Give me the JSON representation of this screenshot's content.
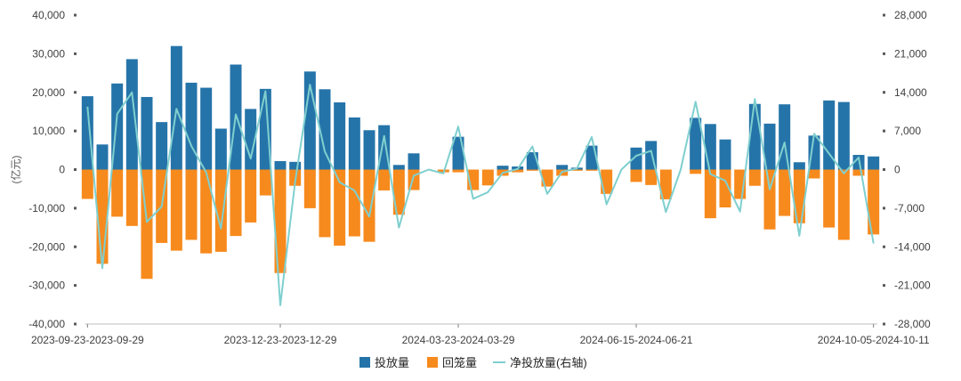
{
  "colors": {
    "inject": "#2574A9",
    "withdraw": "#F78A1D",
    "net": "#7FCFCF",
    "axis": "#7F7F7F",
    "text": "#404040"
  },
  "chart_data": {
    "type": "bar",
    "ylabel": "(亿元)",
    "ylim": [
      -40000,
      40000
    ],
    "y2lim": [
      -28000,
      28000
    ],
    "yticks": [
      "40,000",
      "30,000",
      "20,000",
      "10,000",
      "0",
      "-10,000",
      "-20,000",
      "-30,000",
      "-40,000"
    ],
    "y2ticks": [
      "28,000",
      "21,000",
      "14,000",
      "7,000",
      "0",
      "-7,000",
      "-14,000",
      "-21,000",
      "-28,000"
    ],
    "xticks": [
      {
        "index": 0,
        "label": "2023-09-23-2023-09-29"
      },
      {
        "index": 13,
        "label": "2023-12-23-2023-12-29"
      },
      {
        "index": 25,
        "label": "2024-03-23-2024-03-29"
      },
      {
        "index": 37,
        "label": "2024-06-15-2024-06-21"
      },
      {
        "index": 53,
        "label": "2024-10-05-2024-10-11"
      }
    ],
    "grid": false,
    "legend_position": "bottom",
    "legend": [
      "投放量",
      "回笼量",
      "净投放量(右轴)"
    ],
    "series": [
      {
        "name": "投放量",
        "values": [
          19000,
          6500,
          22300,
          28600,
          18800,
          12300,
          32000,
          22500,
          21200,
          10600,
          27200,
          15700,
          20900,
          2200,
          2000,
          25400,
          20800,
          17400,
          13500,
          10200,
          11500,
          1200,
          4200,
          0,
          0,
          8500,
          0,
          0,
          1000,
          800,
          4500,
          0,
          1200,
          500,
          6200,
          0,
          0,
          5700,
          7400,
          0,
          0,
          13400,
          11800,
          7800,
          0,
          17000,
          11900,
          16900,
          1900,
          8800,
          17900,
          17500,
          3800,
          3400
        ]
      },
      {
        "name": "回笼量",
        "values": [
          -7600,
          -24400,
          -12200,
          -14600,
          -28300,
          -19000,
          -21000,
          -18200,
          -21700,
          -21300,
          -17200,
          -13700,
          -6700,
          -26800,
          -4200,
          -10000,
          -17500,
          -19700,
          -17300,
          -18700,
          -5400,
          -11700,
          -5300,
          0,
          -700,
          -700,
          -5300,
          -4100,
          -1600,
          -700,
          -300,
          -4400,
          -1600,
          -300,
          -300,
          -6300,
          0,
          -3200,
          -4000,
          -7700,
          0,
          -1100,
          -12600,
          -9800,
          -7600,
          -4200,
          -15500,
          -12000,
          -13900,
          -2300,
          -15000,
          -18200,
          -1600,
          -16800
        ]
      },
      {
        "name": "净投放量(右轴)",
        "values": [
          11400,
          -17900,
          10100,
          14000,
          -9500,
          -6700,
          11000,
          4300,
          -500,
          -10700,
          10000,
          2000,
          14200,
          -24600,
          -2200,
          15400,
          3300,
          -2300,
          -3800,
          -8500,
          6100,
          -10500,
          -1100,
          0,
          -700,
          7800,
          -5300,
          -4100,
          -600,
          100,
          4200,
          -4400,
          -400,
          200,
          5900,
          -6300,
          0,
          2500,
          3400,
          -7700,
          0,
          12300,
          -800,
          -2000,
          -7600,
          12800,
          -3600,
          4900,
          -12000,
          6500,
          2900,
          -700,
          2200,
          -13400
        ]
      }
    ]
  }
}
